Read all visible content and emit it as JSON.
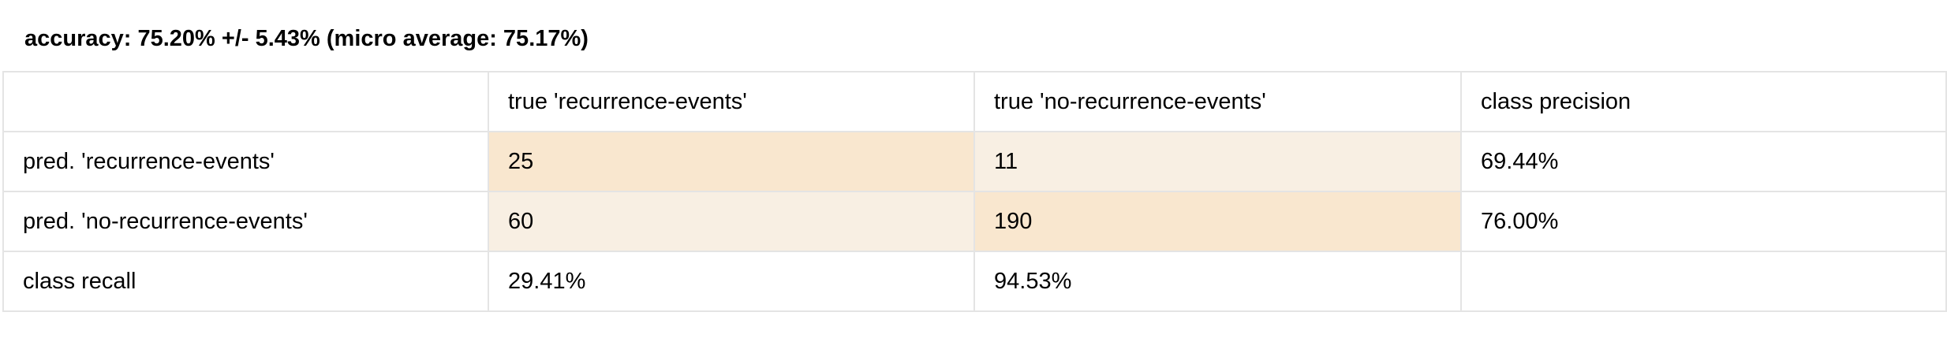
{
  "title": "accuracy: 75.20% +/- 5.43% (micro average: 75.17%)",
  "table": {
    "header": [
      "",
      "true 'recurrence-events'",
      "true 'no-recurrence-events'",
      "class precision"
    ],
    "rows": [
      {
        "label": "pred. 'recurrence-events'",
        "cells": [
          "25",
          "11",
          "69.44%"
        ],
        "highlight": [
          "strong",
          "light",
          "none"
        ]
      },
      {
        "label": "pred. 'no-recurrence-events'",
        "cells": [
          "60",
          "190",
          "76.00%"
        ],
        "highlight": [
          "light",
          "strong",
          "none"
        ]
      },
      {
        "label": "class recall",
        "cells": [
          "29.41%",
          "94.53%",
          ""
        ],
        "highlight": [
          "none",
          "none",
          "none"
        ]
      }
    ]
  },
  "colors": {
    "highlight_strong": "#f9e7cf",
    "highlight_light": "#f8efe3",
    "border": "#e4e4e4"
  }
}
